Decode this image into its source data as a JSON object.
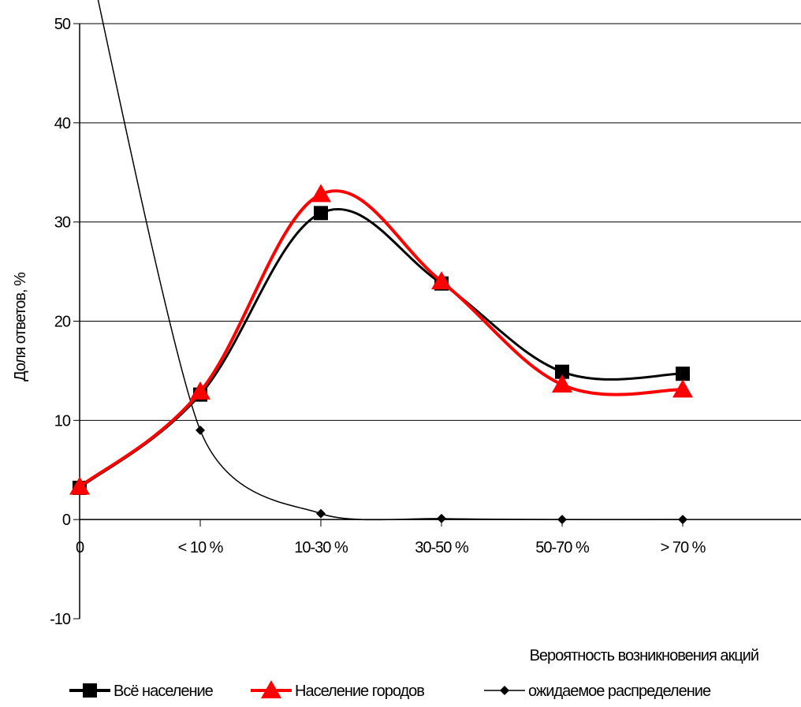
{
  "chart_data": {
    "type": "line",
    "title": "",
    "xlabel": "Вероятность возникновения акций",
    "ylabel": "Доля ответов, %",
    "categories": [
      "0",
      "< 10 %",
      "10-30 %",
      "30-50 %",
      "50-70 %",
      "> 70 %"
    ],
    "ylim": [
      -10,
      50
    ],
    "yticks": [
      "50",
      "40",
      "30",
      "20",
      "10",
      "0",
      "-10"
    ],
    "grid": true,
    "legend_position": "bottom",
    "series": [
      {
        "name": "Всё население",
        "values": [
          3.2,
          12.6,
          30.9,
          23.8,
          14.9,
          14.7
        ],
        "color": "#000000",
        "marker": "square"
      },
      {
        "name": "Население городов",
        "values": [
          3.3,
          12.9,
          32.8,
          24.0,
          13.6,
          13.1
        ],
        "color": "#ff0000",
        "marker": "triangle"
      },
      {
        "name": "ожидаемое распределение",
        "values": [
          61.0,
          9.0,
          0.6,
          0.1,
          0.0,
          0.0
        ],
        "color": "#000000",
        "marker": "diamond"
      }
    ]
  }
}
